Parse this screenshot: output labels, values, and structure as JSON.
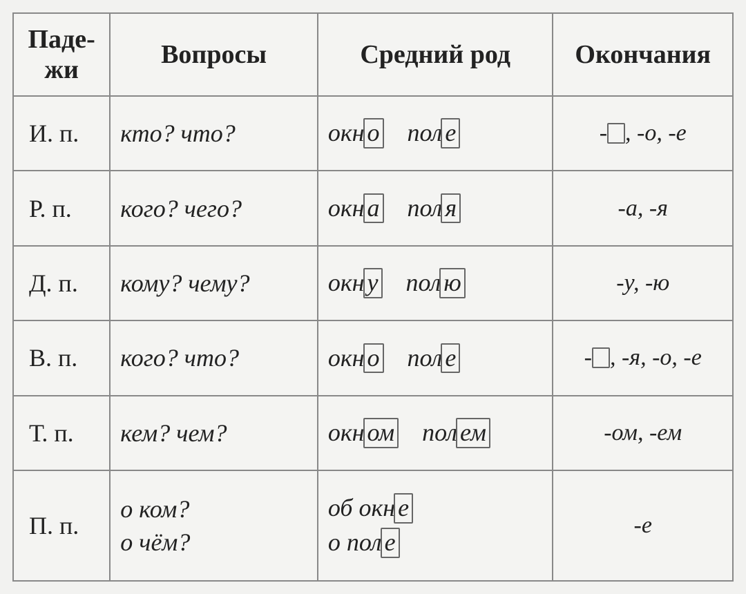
{
  "headers": {
    "cases": "Паде-\nжи",
    "questions": "Вопросы",
    "examples": "Средний  род",
    "endings": "Окончания"
  },
  "rows": [
    {
      "case": "И. п.",
      "questions": [
        "кто? что?"
      ],
      "ex": [
        {
          "root": "окн",
          "suf": "о"
        },
        {
          "root": "пол",
          "suf": "е"
        }
      ],
      "endings_html": "-<span class='blank'></span>, -о, -е"
    },
    {
      "case": "Р. п.",
      "questions": [
        "кого? чего?"
      ],
      "ex": [
        {
          "root": "окн",
          "suf": "а"
        },
        {
          "root": "пол",
          "suf": "я"
        }
      ],
      "endings_html": "-а, -я"
    },
    {
      "case": "Д. п.",
      "questions": [
        "кому? чему?"
      ],
      "ex": [
        {
          "root": "окн",
          "suf": "у"
        },
        {
          "root": "пол",
          "suf": "ю"
        }
      ],
      "endings_html": "-у, -ю"
    },
    {
      "case": "В. п.",
      "questions": [
        "кого? что?"
      ],
      "ex": [
        {
          "root": "окн",
          "suf": "о"
        },
        {
          "root": "пол",
          "suf": "е"
        }
      ],
      "endings_html": "-<span class='blank'></span>, -я, -о, -е"
    },
    {
      "case": "Т. п.",
      "questions": [
        "кем? чем?"
      ],
      "ex": [
        {
          "root": "окн",
          "suf": "ом"
        },
        {
          "root": "пол",
          "suf": "ем"
        }
      ],
      "endings_html": "-ом, -ем"
    },
    {
      "case": "П. п.",
      "questions": [
        "о ком?",
        "о чём?"
      ],
      "ex": [
        {
          "root": "об окн",
          "suf": "е"
        },
        {
          "root": "о пол",
          "suf": "е"
        }
      ],
      "ex_stacked": true,
      "endings_html": "-е"
    }
  ]
}
